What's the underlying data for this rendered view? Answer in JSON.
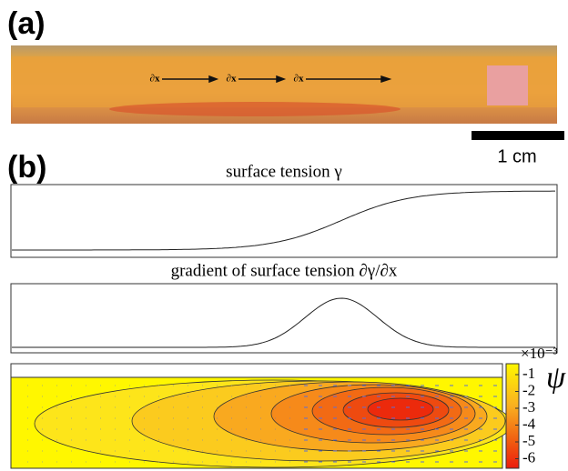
{
  "panel_a": {
    "label": "(a)",
    "arrow_labels": [
      "∂x",
      "∂x",
      "∂x"
    ],
    "scale_bar": "1 cm"
  },
  "panel_b": {
    "label": "(b)",
    "plot1_title": "surface tension γ",
    "plot2_title": "gradient of surface tension ∂γ/∂x",
    "colorbar": {
      "multiplier": "×10⁻³",
      "symbol": "ψ",
      "ticks": [
        -1,
        -2,
        -3,
        -4,
        -5,
        -6
      ]
    }
  }
}
